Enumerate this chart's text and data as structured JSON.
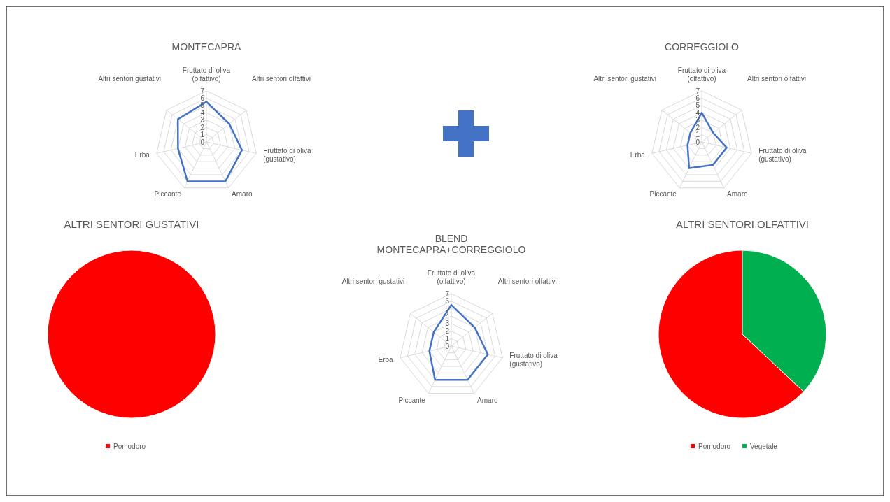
{
  "chart_data": [
    {
      "type": "radar",
      "title": "MONTECAPRA",
      "categories": [
        "Fruttato di oliva (olfattivo)",
        "Altri sentori olfattivi",
        "Fruttato di oliva (gustativo)",
        "Amaro",
        "Piccante",
        "Erba",
        "Altri sentori gustativi"
      ],
      "ylim": [
        0,
        7
      ],
      "yticks": [
        0,
        1,
        2,
        3,
        4,
        5,
        6,
        7
      ],
      "grid": true,
      "series": [
        {
          "color": "#4472c4",
          "values": [
            5.5,
            4,
            5,
            6,
            6,
            4,
            5
          ]
        }
      ]
    },
    {
      "type": "radar",
      "title": "CORREGGIOLO",
      "categories": [
        "Fruttato di oliva (olfattivo)",
        "Altri sentori olfattivi",
        "Fruttato di oliva (gustativo)",
        "Amaro",
        "Piccante",
        "Erba",
        "Altri sentori gustativi"
      ],
      "ylim": [
        0,
        7
      ],
      "yticks": [
        0,
        1,
        2,
        3,
        4,
        5,
        6,
        7
      ],
      "grid": true,
      "series": [
        {
          "color": "#4472c4",
          "values": [
            4,
            2,
            3.5,
            3.5,
            4,
            2,
            2
          ]
        }
      ]
    },
    {
      "type": "pie",
      "title": "ALTRI SENTORI GUSTATIVI",
      "categories": [
        "Pomodoro"
      ],
      "values": [
        100
      ],
      "colors": [
        "#ff0000"
      ],
      "legend": "bottom"
    },
    {
      "type": "radar",
      "title": "BLEND MONTECAPRA+CORREGGIOLO",
      "categories": [
        "Fruttato di oliva (olfattivo)",
        "Altri sentori olfattivi",
        "Fruttato di oliva (gustativo)",
        "Amaro",
        "Piccante",
        "Erba",
        "Altri sentori gustativi"
      ],
      "ylim": [
        0,
        7
      ],
      "yticks": [
        0,
        1,
        2,
        3,
        4,
        5,
        6,
        7
      ],
      "grid": true,
      "series": [
        {
          "color": "#4472c4",
          "values": [
            5.5,
            4,
            5,
            5,
            5,
            3,
            3
          ]
        }
      ]
    },
    {
      "type": "pie",
      "title": "ALTRI SENTORI OLFATTIVI",
      "categories": [
        "Pomodoro",
        "Vegetale"
      ],
      "values": [
        63,
        37
      ],
      "colors": [
        "#ff0000",
        "#00b050"
      ],
      "legend": "bottom"
    }
  ]
}
